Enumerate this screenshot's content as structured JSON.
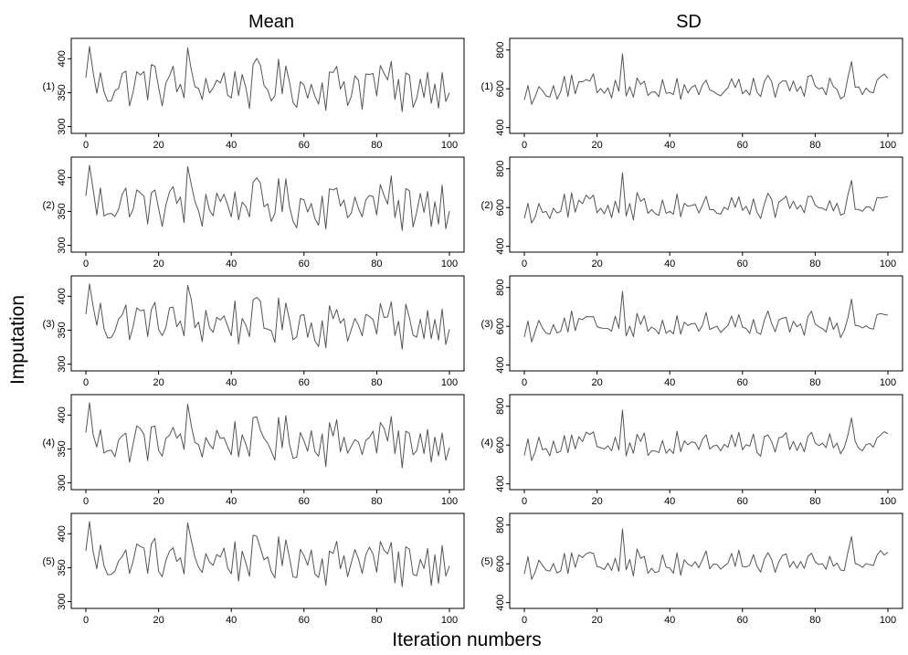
{
  "chart_data": {
    "type": "line",
    "columns": [
      {
        "key": "mean",
        "title": "Mean",
        "ylim": [
          290,
          430
        ],
        "yticks": [
          300,
          350,
          400
        ],
        "base": 362,
        "amp": 48,
        "min": 320,
        "max": 418
      },
      {
        "key": "sd",
        "title": "SD",
        "ylim": [
          370,
          860
        ],
        "yticks": [
          400,
          600,
          800
        ],
        "base": 608,
        "amp": 90,
        "min": 505,
        "max": 780
      }
    ],
    "rows": [
      "(1)",
      "(2)",
      "(3)",
      "(4)",
      "(5)"
    ],
    "x": {
      "min": 0,
      "max": 100,
      "ticks": [
        0,
        20,
        40,
        60,
        80,
        100
      ]
    },
    "xlabel": "Iteration numbers",
    "ylabel": "Imputation",
    "series_note": "Each panel plots one value per iteration 0–100; values approximated from the trace plot.",
    "colors": {
      "line": "#555555",
      "frame": "#000000",
      "background": "#ffffff"
    }
  }
}
